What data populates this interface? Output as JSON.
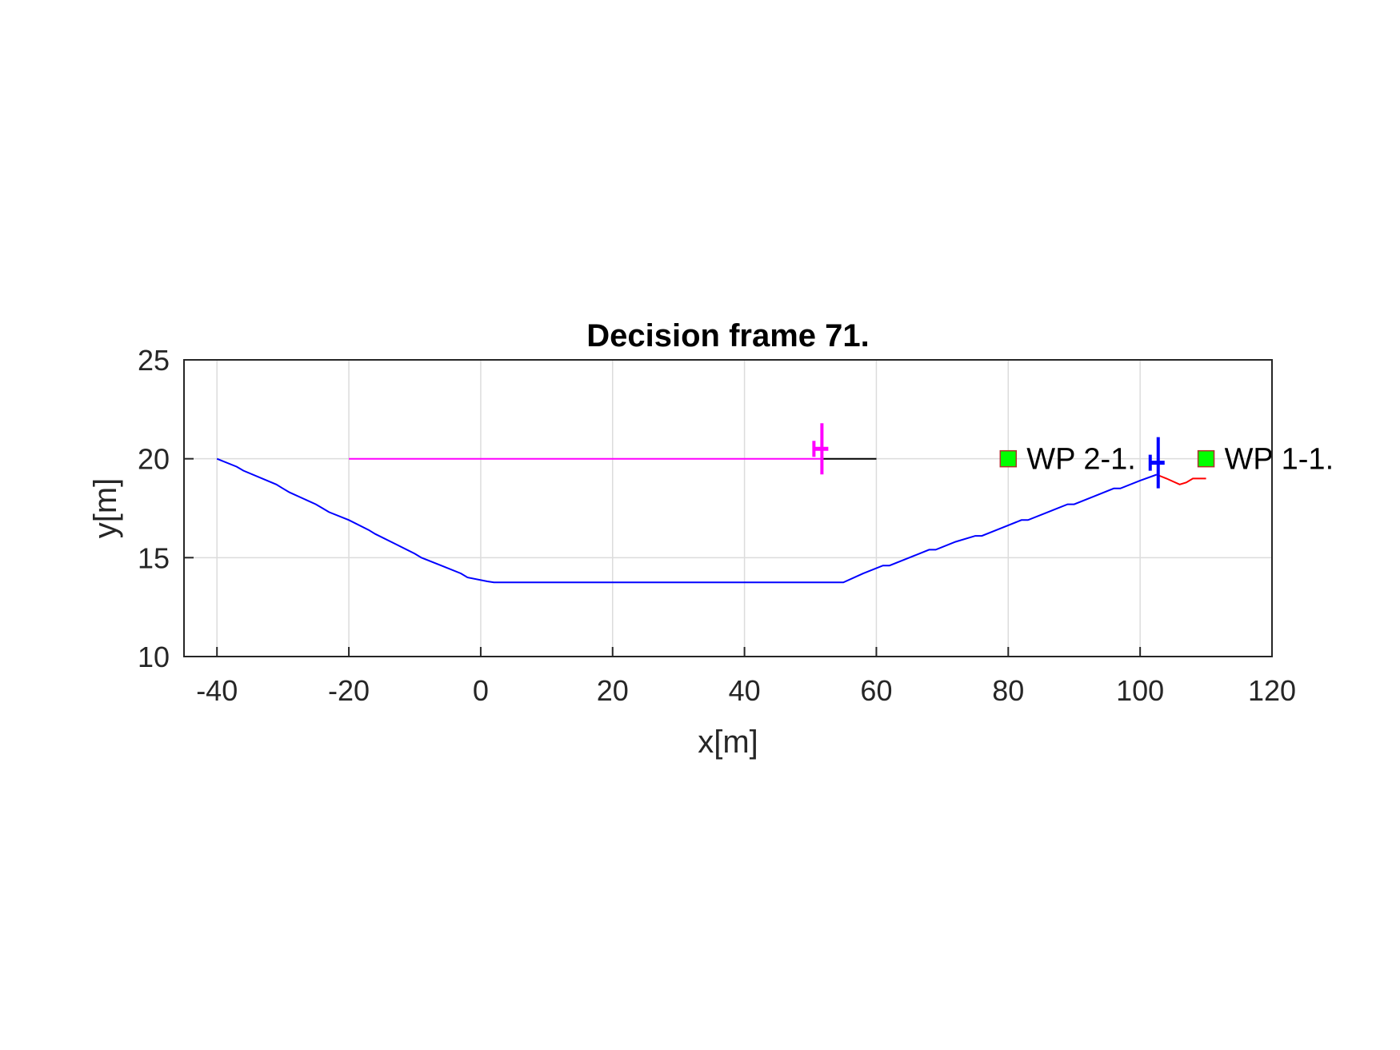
{
  "chart_data": {
    "type": "line",
    "title": "Decision frame 71.",
    "xlabel": "x[m]",
    "ylabel": "y[m]",
    "xlim": [
      -45,
      120
    ],
    "ylim": [
      10,
      25
    ],
    "x_ticks": [
      -40,
      -20,
      0,
      20,
      40,
      60,
      80,
      100,
      120
    ],
    "y_ticks": [
      10,
      15,
      20,
      25
    ],
    "x_tick_labels": [
      "-40",
      "-20",
      "0",
      "20",
      "40",
      "60",
      "80",
      "100",
      "120"
    ],
    "y_tick_labels": [
      "10",
      "15",
      "20",
      "25"
    ],
    "grid": true,
    "series": [
      {
        "color": "#0000ff",
        "x": [
          -40,
          -37,
          -36,
          -31,
          -30,
          -29,
          -25,
          -24,
          -23,
          -20,
          -17,
          -16,
          -13,
          -10,
          -9,
          -6,
          -3,
          -2,
          1,
          2,
          54,
          55,
          58,
          61,
          62,
          65,
          68,
          69,
          72,
          75,
          76,
          79,
          82,
          83,
          86,
          89,
          90,
          93,
          96,
          97,
          100,
          102.5
        ],
        "y": [
          20.0,
          19.6,
          19.4,
          18.7,
          18.5,
          18.3,
          17.7,
          17.5,
          17.3,
          16.9,
          16.4,
          16.2,
          15.7,
          15.2,
          15.0,
          14.6,
          14.2,
          14.0,
          13.8,
          13.75,
          13.75,
          13.75,
          14.2,
          14.6,
          14.6,
          15.0,
          15.4,
          15.4,
          15.8,
          16.1,
          16.1,
          16.5,
          16.9,
          16.9,
          17.3,
          17.7,
          17.7,
          18.1,
          18.5,
          18.5,
          18.9,
          19.2
        ]
      },
      {
        "color": "#ff00ff",
        "x": [
          -20,
          52
        ],
        "y": [
          20.0,
          20.0
        ]
      },
      {
        "color": "#000000",
        "x": [
          52,
          60
        ],
        "y": [
          20.0,
          20.0
        ]
      },
      {
        "color": "#ff0000",
        "x": [
          102.5,
          104,
          106,
          107,
          108,
          110
        ],
        "y": [
          19.2,
          19.0,
          18.7,
          18.8,
          19.0,
          19.0
        ]
      }
    ],
    "markers": [
      {
        "x": 51.5,
        "y": 20.5,
        "color": "#ff00ff"
      },
      {
        "x": 102.5,
        "y": 19.8,
        "color": "#0000ff"
      }
    ],
    "waypoints": [
      {
        "label": "WP 2-1.",
        "x": 80,
        "y": 20,
        "color": "#00ff00"
      },
      {
        "label": "WP 1-1.",
        "x": 110,
        "y": 20,
        "color": "#00ff00"
      }
    ]
  }
}
